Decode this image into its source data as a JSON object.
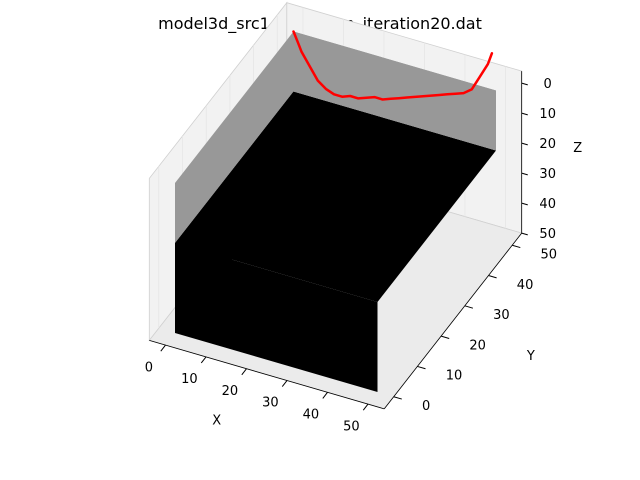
{
  "title": "model3d_src1_all_tt_fsm_iteration20.dat",
  "colors": {
    "top_layer": "#989898",
    "bottom_layer": "#000000",
    "path": "#ff0000",
    "pane": "#f2f2f2"
  },
  "chart_data": {
    "type": "3d-surface-with-path",
    "title": "model3d_src1_all_tt_fsm_iteration20.dat",
    "xlabel": "X",
    "ylabel": "Y",
    "zlabel": "Z",
    "xlim": [
      0,
      50
    ],
    "ylim": [
      0,
      50
    ],
    "zlim": [
      50,
      0
    ],
    "xticks": [
      "0",
      "10",
      "20",
      "30",
      "40",
      "50"
    ],
    "yticks": [
      "0",
      "10",
      "20",
      "30",
      "40",
      "50"
    ],
    "zticks": [
      "0",
      "10",
      "20",
      "30",
      "40",
      "50"
    ],
    "layers": [
      {
        "z_top": 0,
        "z_bottom": 20,
        "color": "#989898"
      },
      {
        "z_top": 20,
        "z_bottom": 50,
        "color": "#000000"
      }
    ],
    "path": {
      "color": "#ff0000",
      "y": 50,
      "points": [
        [
          0,
          0
        ],
        [
          1,
          3
        ],
        [
          2,
          6
        ],
        [
          4,
          10
        ],
        [
          6,
          14
        ],
        [
          8,
          16
        ],
        [
          10,
          17
        ],
        [
          12,
          17
        ],
        [
          14,
          16
        ],
        [
          16,
          16
        ],
        [
          18,
          15
        ],
        [
          20,
          14
        ],
        [
          22,
          14
        ],
        [
          24,
          13
        ],
        [
          26,
          12
        ],
        [
          28,
          11
        ],
        [
          30,
          10
        ],
        [
          32,
          9
        ],
        [
          34,
          8
        ],
        [
          36,
          7
        ],
        [
          38,
          6
        ],
        [
          40,
          5
        ],
        [
          42,
          4
        ],
        [
          44,
          2
        ],
        [
          46,
          -3
        ],
        [
          48,
          -8
        ],
        [
          49,
          -12
        ]
      ]
    }
  }
}
